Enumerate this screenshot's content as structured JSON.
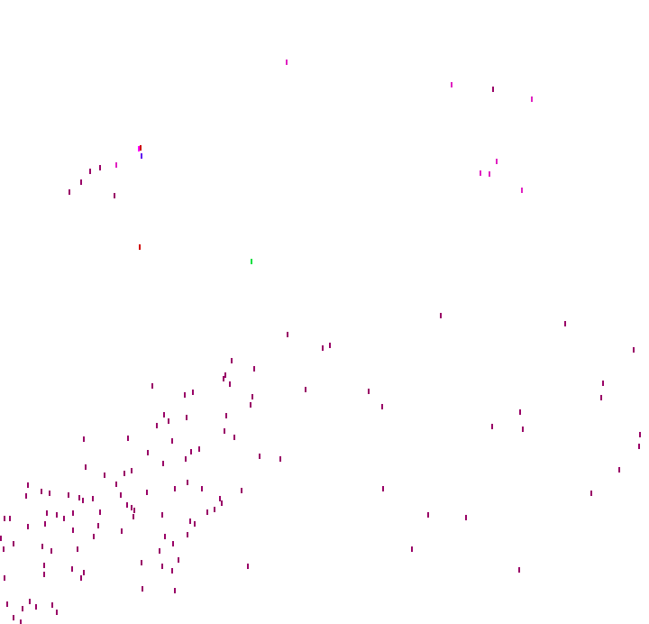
{
  "colors": {
    "background": "#ffffff",
    "primary_mark": "#990066",
    "magenta_mark": "#e020c0",
    "pink_mark": "#ff00ff",
    "red_mark": "#d00000",
    "blue_mark": "#6010f0",
    "green_mark": "#00e040"
  }
}
